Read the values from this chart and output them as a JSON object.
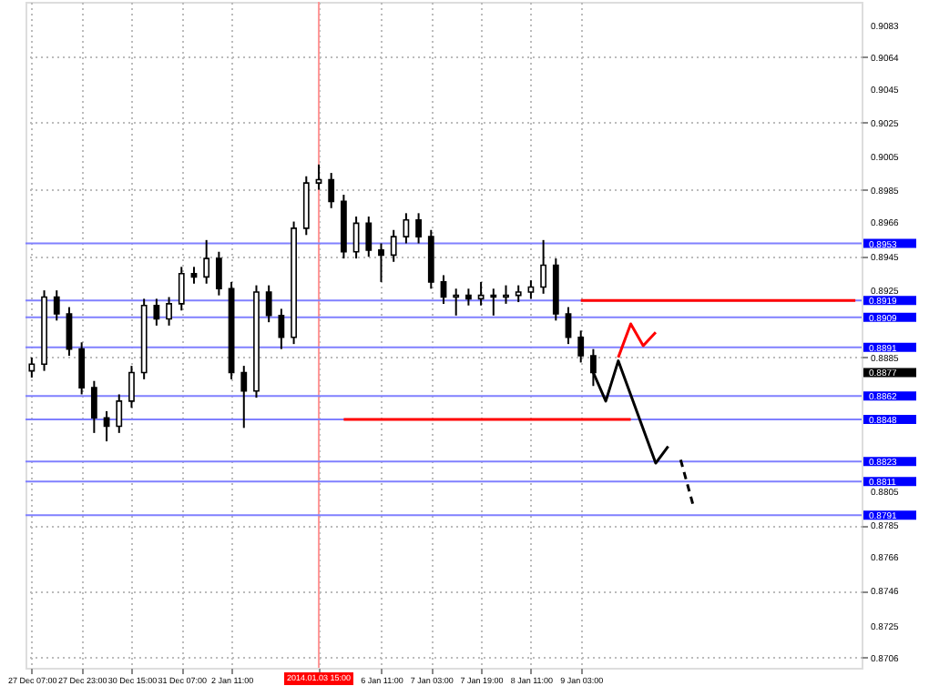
{
  "chart_data": {
    "type": "candlestick",
    "categories": [
      "27 Dec 07:00",
      null,
      null,
      null,
      "27 Dec 23:00",
      null,
      null,
      null,
      "30 Dec 15:00",
      null,
      null,
      null,
      "31 Dec 07:00",
      null,
      null,
      null,
      "2 Jan 11:00",
      null,
      null,
      null,
      null,
      null,
      null,
      "2014.01.03 15:00",
      null,
      null,
      null,
      null,
      "6 Jan 11:00",
      null,
      null,
      null,
      "7 Jan 03:00",
      null,
      null,
      null,
      "7 Jan 19:00",
      null,
      null,
      null,
      "8 Jan 11:00",
      null,
      null,
      null,
      "9 Jan 03:00",
      null,
      null,
      null,
      null,
      null,
      null,
      null,
      null,
      null,
      null,
      null,
      null,
      null,
      null,
      null,
      null,
      null,
      null,
      null,
      null,
      null,
      null
    ],
    "ohlc": [
      [
        0.8877,
        0.8885,
        0.8873,
        0.8881
      ],
      [
        0.8881,
        0.8925,
        0.8877,
        0.8921
      ],
      [
        0.8921,
        0.8925,
        0.8907,
        0.8911
      ],
      [
        0.8911,
        0.8915,
        0.8886,
        0.889
      ],
      [
        0.889,
        0.8894,
        0.8863,
        0.8867
      ],
      [
        0.8867,
        0.8871,
        0.884,
        0.8849
      ],
      [
        0.8849,
        0.8853,
        0.8835,
        0.8844
      ],
      [
        0.8844,
        0.8863,
        0.884,
        0.8859
      ],
      [
        0.8859,
        0.888,
        0.8855,
        0.8876
      ],
      [
        0.8876,
        0.892,
        0.8872,
        0.8916
      ],
      [
        0.8916,
        0.892,
        0.8904,
        0.8908
      ],
      [
        0.8908,
        0.8921,
        0.8904,
        0.8917
      ],
      [
        0.8917,
        0.8939,
        0.8913,
        0.8935
      ],
      [
        0.8935,
        0.8939,
        0.8929,
        0.8933
      ],
      [
        0.8933,
        0.8955,
        0.8929,
        0.8944
      ],
      [
        0.8944,
        0.8948,
        0.8922,
        0.8926
      ],
      [
        0.8926,
        0.893,
        0.8872,
        0.8876
      ],
      [
        0.8876,
        0.888,
        0.8843,
        0.8865
      ],
      [
        0.8865,
        0.8928,
        0.8861,
        0.8924
      ],
      [
        0.8924,
        0.8928,
        0.8906,
        0.891
      ],
      [
        0.891,
        0.8914,
        0.889,
        0.8897
      ],
      [
        0.8897,
        0.8966,
        0.8893,
        0.8962
      ],
      [
        0.8962,
        0.8993,
        0.8958,
        0.8989
      ],
      [
        0.8989,
        0.9,
        0.8985,
        0.8991
      ],
      [
        0.8991,
        0.8995,
        0.8974,
        0.8978
      ],
      [
        0.8978,
        0.8982,
        0.8944,
        0.8948
      ],
      [
        0.8948,
        0.8969,
        0.8944,
        0.8965
      ],
      [
        0.8965,
        0.8969,
        0.8945,
        0.8949
      ],
      [
        0.8949,
        0.8953,
        0.893,
        0.8946
      ],
      [
        0.8946,
        0.8961,
        0.8942,
        0.8957
      ],
      [
        0.8957,
        0.8971,
        0.8953,
        0.8967
      ],
      [
        0.8967,
        0.8971,
        0.8953,
        0.8957
      ],
      [
        0.8957,
        0.8961,
        0.8926,
        0.893
      ],
      [
        0.893,
        0.8934,
        0.8917,
        0.8921
      ],
      [
        0.8921,
        0.8926,
        0.891,
        0.8922
      ],
      [
        0.8922,
        0.8926,
        0.8916,
        0.892
      ],
      [
        0.892,
        0.893,
        0.8916,
        0.8922
      ],
      [
        0.8922,
        0.8926,
        0.891,
        0.8921
      ],
      [
        0.8921,
        0.8928,
        0.8917,
        0.8922
      ],
      [
        0.8922,
        0.8928,
        0.8918,
        0.8924
      ],
      [
        0.8924,
        0.8931,
        0.892,
        0.8927
      ],
      [
        0.8927,
        0.8955,
        0.8923,
        0.894
      ],
      [
        0.894,
        0.8944,
        0.8907,
        0.8911
      ],
      [
        0.8911,
        0.8915,
        0.8893,
        0.8897
      ],
      [
        0.8897,
        0.8901,
        0.8882,
        0.8886
      ],
      [
        0.8886,
        0.889,
        0.8868,
        0.8876
      ],
      null,
      null,
      null,
      null,
      null,
      null,
      null,
      null,
      null,
      null,
      null,
      null,
      null,
      null,
      null,
      null,
      null,
      null,
      null,
      null,
      null
    ],
    "series": [
      {
        "type": "line",
        "color": "#000000",
        "values": [
          null,
          null,
          null,
          null,
          null,
          null,
          null,
          null,
          null,
          null,
          null,
          null,
          null,
          null,
          null,
          null,
          null,
          null,
          null,
          null,
          null,
          null,
          null,
          null,
          null,
          null,
          null,
          null,
          null,
          null,
          null,
          null,
          null,
          null,
          null,
          null,
          null,
          null,
          null,
          null,
          null,
          null,
          null,
          null,
          null,
          0.8876,
          0.8859,
          0.8883,
          null,
          null,
          0.8822,
          0.8832,
          null,
          null,
          null,
          null,
          null,
          null,
          null,
          null,
          null,
          null,
          null,
          null,
          null,
          null,
          null
        ]
      },
      {
        "type": "line",
        "color": "#000000",
        "line_style": "dashed",
        "values": [
          null,
          null,
          null,
          null,
          null,
          null,
          null,
          null,
          null,
          null,
          null,
          null,
          null,
          null,
          null,
          null,
          null,
          null,
          null,
          null,
          null,
          null,
          null,
          null,
          null,
          null,
          null,
          null,
          null,
          null,
          null,
          null,
          null,
          null,
          null,
          null,
          null,
          null,
          null,
          null,
          null,
          null,
          null,
          null,
          null,
          null,
          null,
          null,
          null,
          null,
          null,
          null,
          0.8824,
          0.8797,
          null,
          null,
          null,
          null,
          null,
          null,
          null,
          null,
          null,
          null,
          null,
          null,
          null
        ]
      },
      {
        "type": "line",
        "color": "#ff0000",
        "values": [
          null,
          null,
          null,
          null,
          null,
          null,
          null,
          null,
          null,
          null,
          null,
          null,
          null,
          null,
          null,
          null,
          null,
          null,
          null,
          null,
          null,
          null,
          null,
          null,
          null,
          null,
          null,
          null,
          null,
          null,
          null,
          null,
          null,
          null,
          null,
          null,
          null,
          null,
          null,
          null,
          null,
          null,
          null,
          null,
          null,
          null,
          null,
          0.8885,
          0.8905,
          0.8892,
          0.89,
          null,
          null,
          null,
          null,
          null,
          null,
          null,
          null,
          null,
          null,
          null,
          null,
          null,
          null,
          null,
          null
        ]
      },
      {
        "type": "line",
        "color": "#ff0000",
        "values": [
          null,
          null,
          null,
          null,
          null,
          null,
          null,
          null,
          null,
          null,
          null,
          null,
          null,
          null,
          null,
          null,
          null,
          null,
          null,
          null,
          null,
          null,
          null,
          null,
          null,
          null,
          null,
          null,
          null,
          null,
          null,
          null,
          null,
          null,
          null,
          null,
          null,
          null,
          null,
          null,
          null,
          null,
          null,
          null,
          0.8919,
          0.8919,
          0.8919,
          0.8919,
          0.8919,
          0.8919,
          0.8919,
          0.8919,
          0.8919,
          0.8919,
          0.8919,
          0.8919,
          0.8919,
          0.8919,
          0.8919,
          0.8919,
          0.8919,
          0.8919,
          0.8919,
          0.8919,
          0.8919,
          0.8919,
          0.8919
        ]
      },
      {
        "type": "line",
        "color": "#ff0000",
        "values": [
          null,
          null,
          null,
          null,
          null,
          null,
          null,
          null,
          null,
          null,
          null,
          null,
          null,
          null,
          null,
          null,
          null,
          null,
          null,
          null,
          null,
          null,
          null,
          null,
          null,
          0.8848,
          0.8848,
          0.8848,
          0.8848,
          0.8848,
          0.8848,
          0.8848,
          0.8848,
          0.8848,
          0.8848,
          0.8848,
          0.8848,
          0.8848,
          0.8848,
          0.8848,
          0.8848,
          0.8848,
          0.8848,
          0.8848,
          0.8848,
          0.8848,
          0.8848,
          0.8848,
          0.8848,
          null,
          null,
          null,
          null,
          null,
          null,
          null,
          null,
          null,
          null,
          null,
          null,
          null,
          null,
          null,
          null,
          null,
          null
        ]
      }
    ],
    "ylim": [
      0.87,
      0.9097
    ],
    "yticks": [
      0.9083,
      0.9064,
      0.9045,
      0.9025,
      0.9005,
      0.8985,
      0.8966,
      0.8945,
      0.8925,
      0.8885,
      0.8805,
      0.8785,
      0.8766,
      0.8746,
      0.8725,
      0.8706
    ],
    "ref_lines": [
      {
        "axis": "x",
        "value": "2014.01.03 15:00",
        "color": "#ff9999"
      },
      {
        "axis": "y",
        "value": 0.8953,
        "label": "0.8953",
        "color": "#8080ff"
      },
      {
        "axis": "y",
        "value": 0.8919,
        "label": "0.8919",
        "color": "#8080ff"
      },
      {
        "axis": "y",
        "value": 0.8909,
        "label": "0.8909",
        "color": "#8080ff"
      },
      {
        "axis": "y",
        "value": 0.8891,
        "label": "0.8891",
        "color": "#8080ff"
      },
      {
        "axis": "y",
        "value": 0.8862,
        "label": "0.8862",
        "color": "#8080ff"
      },
      {
        "axis": "y",
        "value": 0.8848,
        "label": "0.8848",
        "color": "#8080ff"
      },
      {
        "axis": "y",
        "value": 0.8823,
        "label": "0.8823",
        "color": "#8080ff"
      },
      {
        "axis": "y",
        "value": 0.8811,
        "label": "0.8811",
        "color": "#8080ff"
      },
      {
        "axis": "y",
        "value": 0.8791,
        "label": "0.8791",
        "color": "#8080ff"
      }
    ],
    "annotations": [
      "0.8877"
    ],
    "grid": true
  }
}
